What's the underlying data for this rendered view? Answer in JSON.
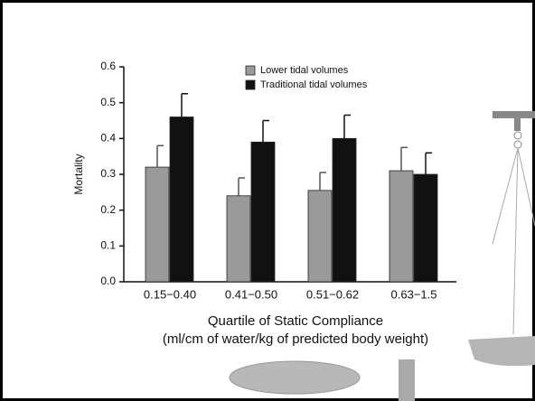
{
  "chart_data": {
    "type": "bar",
    "categories": [
      "0.15−0.40",
      "0.41−0.50",
      "0.51−0.62",
      "0.63−1.5"
    ],
    "series": [
      {
        "name": "Lower tidal volumes",
        "color": "#9a9a9a",
        "values": [
          0.32,
          0.24,
          0.255,
          0.31
        ],
        "errors": [
          0.06,
          0.05,
          0.05,
          0.065
        ]
      },
      {
        "name": "Traditional tidal volumes",
        "color": "#111111",
        "values": [
          0.46,
          0.39,
          0.4,
          0.3
        ],
        "errors": [
          0.065,
          0.06,
          0.065,
          0.06
        ]
      }
    ],
    "ylabel": "Mortality",
    "xlabel": [
      "Quartile of Static Compliance",
      "(ml/cm of water/kg of predicted body weight)"
    ],
    "ylim": [
      0,
      0.6
    ],
    "yticks": [
      {
        "value": 0,
        "label": "0.0"
      },
      0.1,
      0.2,
      0.3,
      0.4,
      0.5,
      0.6
    ],
    "legend": "top"
  }
}
